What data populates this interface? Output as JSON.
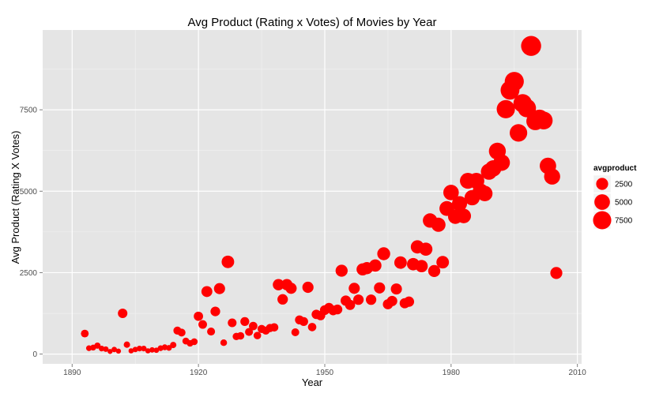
{
  "chart_data": {
    "type": "scatter",
    "title": "Avg Product (Rating x Votes) of Movies by Year",
    "xlabel": "Year",
    "ylabel": "Avg Product (Rating X Votes)",
    "xlim": [
      1883,
      2011
    ],
    "ylim": [
      -300,
      9950
    ],
    "x_ticks": [
      1890,
      1920,
      1950,
      1980,
      2010
    ],
    "y_ticks": [
      0,
      2500,
      5000,
      7500
    ],
    "grid": true,
    "marker_color": "#ff0000",
    "panel_color": "#e5e5e5",
    "legend": {
      "title": "avgproduct",
      "position": "right",
      "entries": [
        {
          "label": "2500",
          "value": 2500
        },
        {
          "label": "5000",
          "value": 5000
        },
        {
          "label": "7500",
          "value": 7500
        }
      ]
    },
    "points": [
      [
        1893,
        630
      ],
      [
        1894,
        180
      ],
      [
        1895,
        200
      ],
      [
        1896,
        260
      ],
      [
        1897,
        170
      ],
      [
        1898,
        150
      ],
      [
        1899,
        80
      ],
      [
        1900,
        140
      ],
      [
        1901,
        90
      ],
      [
        1902,
        1250
      ],
      [
        1903,
        290
      ],
      [
        1904,
        100
      ],
      [
        1905,
        140
      ],
      [
        1906,
        170
      ],
      [
        1907,
        170
      ],
      [
        1908,
        100
      ],
      [
        1909,
        130
      ],
      [
        1910,
        120
      ],
      [
        1911,
        180
      ],
      [
        1912,
        210
      ],
      [
        1913,
        190
      ],
      [
        1914,
        280
      ],
      [
        1915,
        720
      ],
      [
        1916,
        660
      ],
      [
        1917,
        400
      ],
      [
        1918,
        330
      ],
      [
        1919,
        380
      ],
      [
        1920,
        1160
      ],
      [
        1921,
        910
      ],
      [
        1922,
        1920
      ],
      [
        1923,
        690
      ],
      [
        1924,
        1310
      ],
      [
        1925,
        2010
      ],
      [
        1926,
        350
      ],
      [
        1927,
        2830
      ],
      [
        1928,
        960
      ],
      [
        1929,
        540
      ],
      [
        1930,
        560
      ],
      [
        1931,
        1000
      ],
      [
        1932,
        680
      ],
      [
        1933,
        860
      ],
      [
        1934,
        570
      ],
      [
        1935,
        770
      ],
      [
        1936,
        720
      ],
      [
        1937,
        800
      ],
      [
        1938,
        820
      ],
      [
        1939,
        2130
      ],
      [
        1940,
        1680
      ],
      [
        1941,
        2130
      ],
      [
        1942,
        2020
      ],
      [
        1943,
        670
      ],
      [
        1944,
        1050
      ],
      [
        1945,
        1000
      ],
      [
        1946,
        2050
      ],
      [
        1947,
        830
      ],
      [
        1948,
        1220
      ],
      [
        1949,
        1180
      ],
      [
        1950,
        1350
      ],
      [
        1951,
        1420
      ],
      [
        1952,
        1340
      ],
      [
        1953,
        1370
      ],
      [
        1954,
        2560
      ],
      [
        1955,
        1640
      ],
      [
        1956,
        1510
      ],
      [
        1957,
        2020
      ],
      [
        1958,
        1670
      ],
      [
        1959,
        2600
      ],
      [
        1960,
        2640
      ],
      [
        1961,
        1670
      ],
      [
        1962,
        2720
      ],
      [
        1963,
        2030
      ],
      [
        1964,
        3080
      ],
      [
        1965,
        1530
      ],
      [
        1966,
        1630
      ],
      [
        1967,
        2000
      ],
      [
        1968,
        2810
      ],
      [
        1969,
        1560
      ],
      [
        1970,
        1610
      ],
      [
        1971,
        2760
      ],
      [
        1972,
        3290
      ],
      [
        1973,
        2700
      ],
      [
        1974,
        3220
      ],
      [
        1975,
        4100
      ],
      [
        1976,
        2550
      ],
      [
        1977,
        3970
      ],
      [
        1978,
        2820
      ],
      [
        1979,
        4470
      ],
      [
        1980,
        4960
      ],
      [
        1981,
        4220
      ],
      [
        1982,
        4620
      ],
      [
        1983,
        4240
      ],
      [
        1984,
        5320
      ],
      [
        1985,
        4800
      ],
      [
        1986,
        5320
      ],
      [
        1987,
        5000
      ],
      [
        1988,
        4930
      ],
      [
        1989,
        5600
      ],
      [
        1990,
        5700
      ],
      [
        1991,
        6230
      ],
      [
        1992,
        5880
      ],
      [
        1993,
        7520
      ],
      [
        1994,
        8100
      ],
      [
        1995,
        8370
      ],
      [
        1996,
        6790
      ],
      [
        1997,
        7700
      ],
      [
        1998,
        7550
      ],
      [
        1999,
        9460
      ],
      [
        2000,
        7150
      ],
      [
        2001,
        7230
      ],
      [
        2002,
        7170
      ],
      [
        2003,
        5780
      ],
      [
        2004,
        5450
      ],
      [
        2005,
        2490
      ]
    ]
  }
}
